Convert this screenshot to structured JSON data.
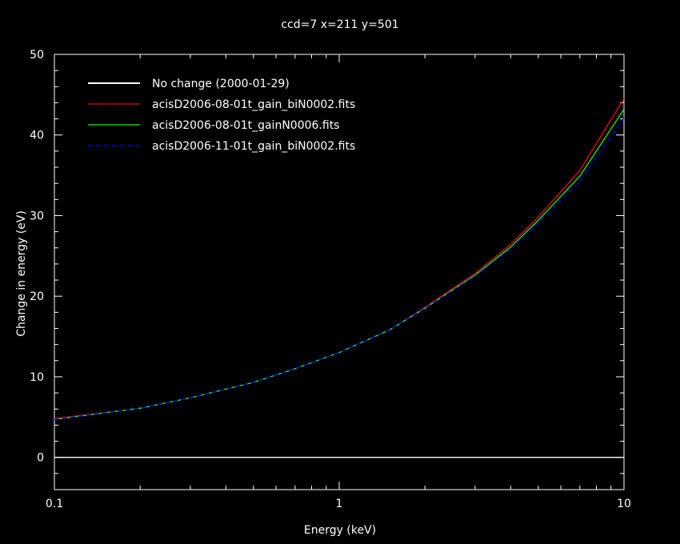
{
  "chart_data": {
    "type": "line",
    "title": "ccd=7 x=211 y=501",
    "xlabel": "Energy (keV)",
    "ylabel": "Change in energy (eV)",
    "xscale": "log",
    "xlim": [
      0.1,
      10
    ],
    "ylim": [
      -4,
      50
    ],
    "xticks": [
      {
        "value": 0.1,
        "label": "0.1"
      },
      {
        "value": 1,
        "label": "1"
      },
      {
        "value": 10,
        "label": "10"
      }
    ],
    "yticks": [
      {
        "value": 0,
        "label": "0"
      },
      {
        "value": 10,
        "label": "10"
      },
      {
        "value": 20,
        "label": "20"
      },
      {
        "value": 30,
        "label": "30"
      },
      {
        "value": 40,
        "label": "40"
      },
      {
        "value": 50,
        "label": "50"
      }
    ],
    "legend_position": "top-left",
    "series": [
      {
        "name": "No change (2000-01-29)",
        "color": "#ffffff",
        "dash": "solid",
        "x": [
          0.1,
          10
        ],
        "y": [
          0,
          0
        ]
      },
      {
        "name": "acisD2006-08-01t_gain_biN0002.fits",
        "color": "#ff0000",
        "dash": "solid",
        "x": [
          0.1,
          0.2,
          0.3,
          0.5,
          0.7,
          1,
          1.5,
          2,
          3,
          4,
          5,
          7,
          10
        ],
        "y": [
          4.8,
          6.1,
          7.4,
          9.3,
          11.0,
          13.0,
          15.8,
          18.6,
          22.8,
          26.4,
          29.8,
          35.6,
          44.5
        ]
      },
      {
        "name": "acisD2006-08-01t_gainN0006.fits",
        "color": "#00ff00",
        "dash": "solid",
        "x": [
          0.1,
          0.2,
          0.3,
          0.5,
          0.7,
          1,
          1.5,
          2,
          3,
          4,
          5,
          7,
          10
        ],
        "y": [
          4.7,
          6.1,
          7.4,
          9.3,
          11.0,
          13.0,
          15.8,
          18.5,
          22.6,
          26.1,
          29.4,
          34.9,
          43.2
        ]
      },
      {
        "name": "acisD2006-11-01t_gain_biN0002.fits",
        "color": "#0000ff",
        "dash": "dashed",
        "x": [
          0.1,
          0.2,
          0.3,
          0.5,
          0.7,
          1,
          1.5,
          2,
          3,
          4,
          5,
          7,
          10
        ],
        "y": [
          4.7,
          6.1,
          7.4,
          9.3,
          11.0,
          13.0,
          15.8,
          18.5,
          22.5,
          25.9,
          29.1,
          34.3,
          42.1
        ]
      }
    ]
  }
}
